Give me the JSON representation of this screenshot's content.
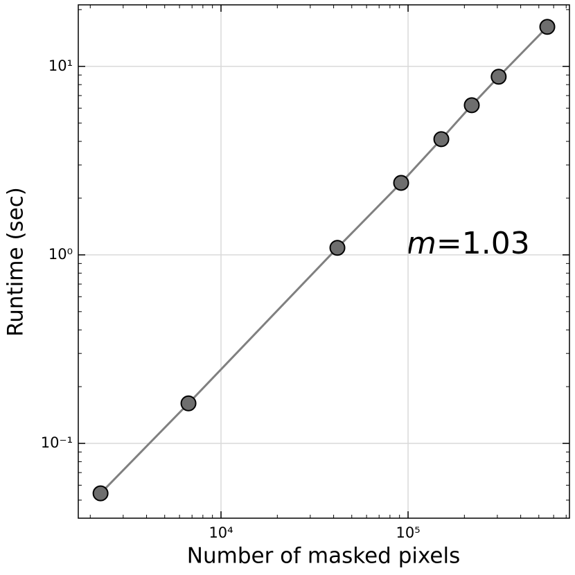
{
  "chart_data": {
    "type": "line",
    "xlabel": "Number of masked pixels",
    "ylabel": "Runtime (sec)",
    "annotation": {
      "variable": "m",
      "text": "=1.03"
    },
    "x": [
      2270,
      6700,
      41900,
      91800,
      150600,
      219000,
      305000,
      555000
    ],
    "series": [
      {
        "color": "#808080",
        "marker_color": "#6e6e6e",
        "values": [
          0.0543,
          0.163,
          1.09,
          2.41,
          4.11,
          6.22,
          8.81,
          16.2
        ]
      }
    ],
    "xscale": "log",
    "yscale": "log",
    "xlim": [
      1726,
      729000
    ],
    "ylim": [
      0.0401,
      21.2
    ],
    "xticks": [
      {
        "value": 10000,
        "label": "10⁴"
      },
      {
        "value": 100000,
        "label": "10⁵"
      }
    ],
    "yticks": [
      {
        "value": 0.1,
        "label": "10⁻¹"
      },
      {
        "value": 1,
        "label": "10⁰"
      },
      {
        "value": 10,
        "label": "10¹"
      }
    ],
    "xminorticks": [
      2000,
      3000,
      4000,
      5000,
      6000,
      7000,
      8000,
      9000,
      20000,
      30000,
      40000,
      50000,
      60000,
      70000,
      80000,
      90000,
      200000,
      300000,
      400000,
      500000,
      600000,
      700000
    ],
    "yminorticks": [
      0.05,
      0.06,
      0.07,
      0.08,
      0.09,
      0.2,
      0.3,
      0.4,
      0.5,
      0.6,
      0.7,
      0.8,
      0.9,
      2,
      3,
      4,
      5,
      6,
      7,
      8,
      9,
      20
    ],
    "grid": true
  }
}
